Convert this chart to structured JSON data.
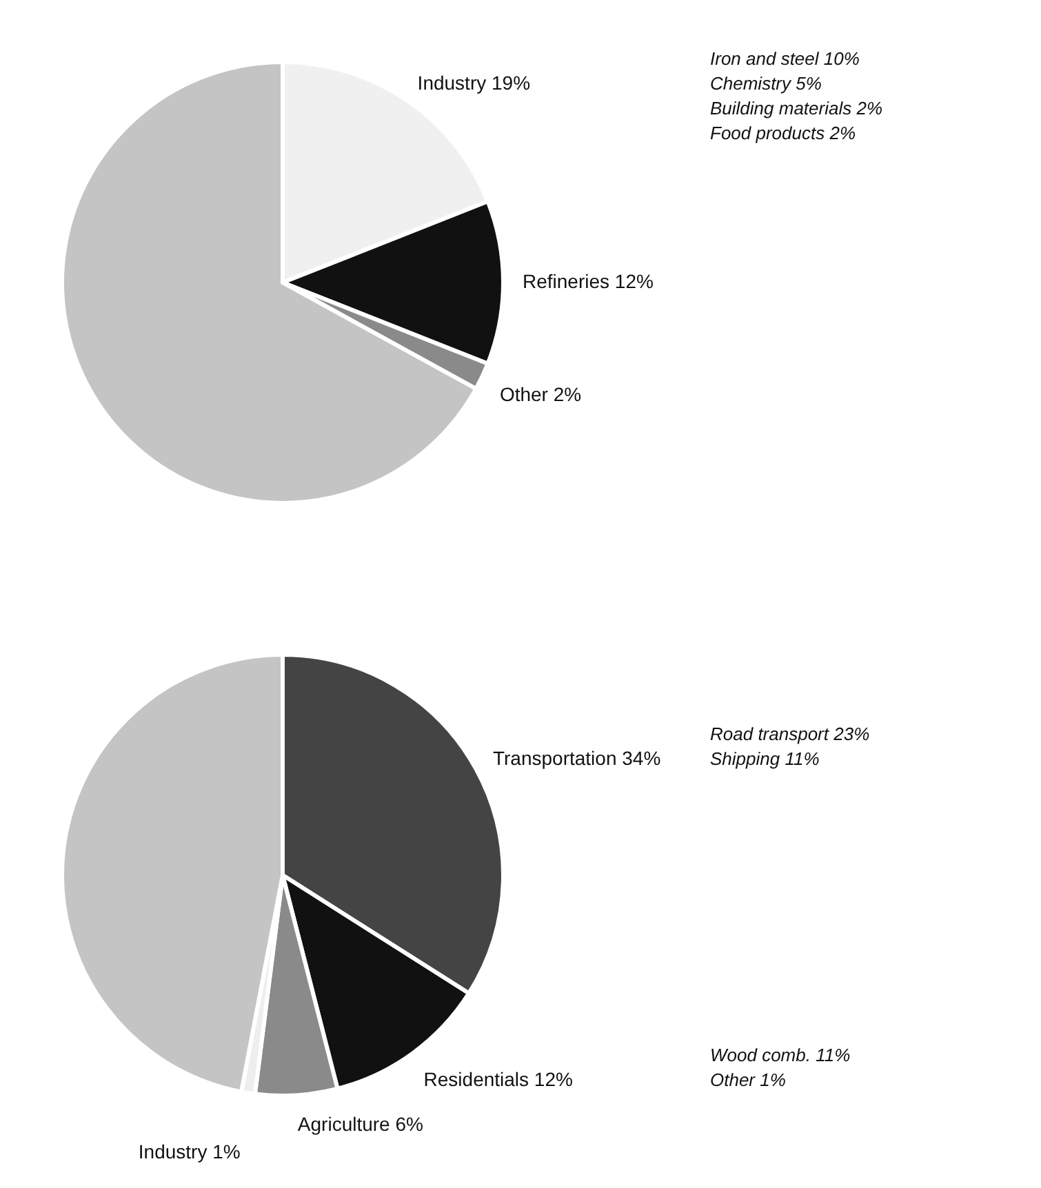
{
  "chart_data": [
    {
      "type": "pie",
      "categories": [
        "Industry",
        "Refineries",
        "Other",
        null
      ],
      "values": [
        19,
        12,
        2,
        67
      ],
      "value_labels": [
        "19%",
        "12%",
        "2%",
        null
      ],
      "colors": [
        "#f0f0f0",
        "#111111",
        "#8a8a8a",
        "#c4c4c4"
      ],
      "annotations": [
        {
          "text": "Iron and steel 10%",
          "x": "Industry"
        },
        {
          "text": "Chemistry 5%",
          "x": "Industry"
        },
        {
          "text": "Building materials 2%",
          "x": "Industry"
        },
        {
          "text": "Food products 2%",
          "x": "Industry"
        }
      ]
    },
    {
      "type": "pie",
      "categories": [
        "Transportation",
        "Residentials",
        "Agriculture",
        "Industry",
        null
      ],
      "values": [
        34,
        12,
        6,
        1,
        47
      ],
      "value_labels": [
        "34%",
        "12%",
        "6%",
        "1%",
        null
      ],
      "colors": [
        "#444444",
        "#111111",
        "#8a8a8a",
        "#eeeeee",
        "#c4c4c4"
      ],
      "annotations": [
        {
          "text": "Road transport 23%",
          "x": "Transportation"
        },
        {
          "text": "Shipping 11%",
          "x": "Transportation"
        },
        {
          "text": "Wood comb. 11%",
          "x": "Residentials"
        },
        {
          "text": "Other 1%",
          "x": "Residentials"
        }
      ]
    }
  ]
}
